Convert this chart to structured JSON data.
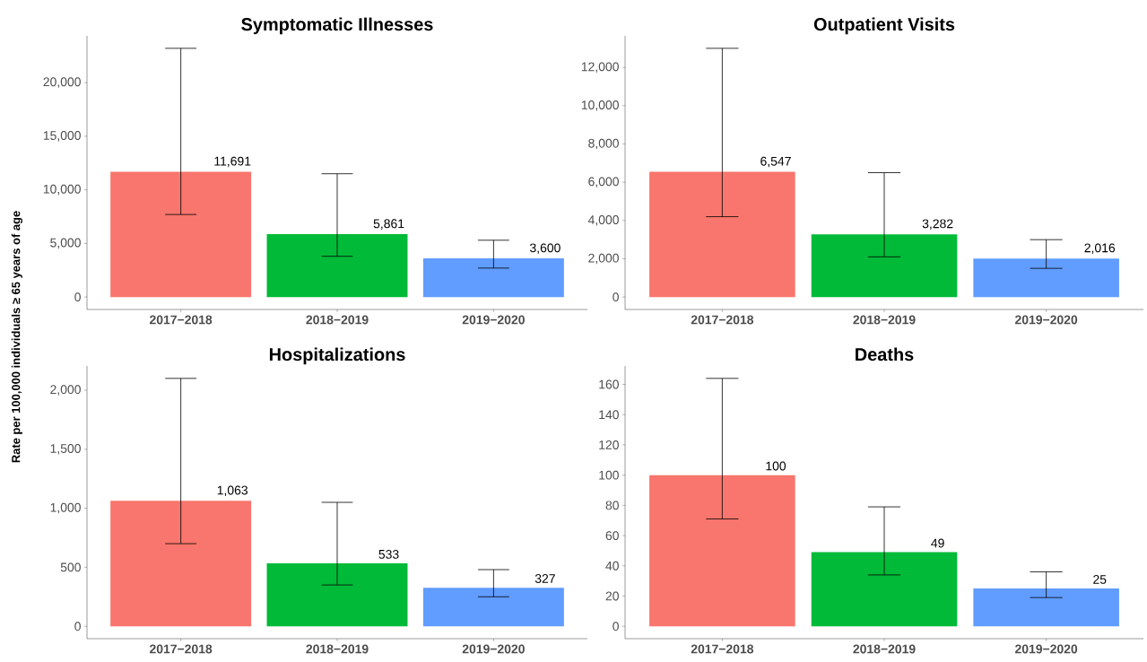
{
  "chart_data": [
    {
      "type": "bar",
      "title": "Symptomatic Illnesses",
      "ylabel": "Rate per 100,000 individuals ≥ 65 years of age",
      "categories": [
        "2017−2018",
        "2018−2019",
        "2019−2020"
      ],
      "values": [
        11691,
        5861,
        3600
      ],
      "value_labels": [
        "11,691",
        "5,861",
        "3,600"
      ],
      "colors": [
        "#f8766d",
        "#00ba38",
        "#619cff"
      ],
      "errors": [
        [
          7700,
          23200
        ],
        [
          3800,
          11500
        ],
        [
          2700,
          5300
        ]
      ],
      "ylim": [
        -1160,
        24360
      ],
      "yticks": [
        0,
        {
          "value": 5000,
          "label": "5,000"
        },
        {
          "value": 10000,
          "label": "10,000"
        },
        {
          "value": 15000,
          "label": "15,000"
        },
        {
          "value": 20000,
          "label": "20,000"
        }
      ],
      "grid": false
    },
    {
      "type": "bar",
      "title": "Outpatient Visits",
      "categories": [
        "2017−2018",
        "2018−2019",
        "2019−2020"
      ],
      "values": [
        6547,
        3282,
        2016
      ],
      "value_labels": [
        "6,547",
        "3,282",
        "2,016"
      ],
      "colors": [
        "#f8766d",
        "#00ba38",
        "#619cff"
      ],
      "errors": [
        [
          4200,
          13000
        ],
        [
          2100,
          6500
        ],
        [
          1500,
          3000
        ]
      ],
      "ylim": [
        -650,
        13650
      ],
      "yticks": [
        0,
        {
          "value": 2000,
          "label": "2,000"
        },
        {
          "value": 4000,
          "label": "4,000"
        },
        {
          "value": 6000,
          "label": "6,000"
        },
        {
          "value": 8000,
          "label": "8,000"
        },
        {
          "value": 10000,
          "label": "10,000"
        },
        {
          "value": 12000,
          "label": "12,000"
        }
      ],
      "grid": false
    },
    {
      "type": "bar",
      "title": "Hospitalizations",
      "categories": [
        "2017−2018",
        "2018−2019",
        "2019−2020"
      ],
      "values": [
        1063,
        533,
        327
      ],
      "value_labels": [
        "1,063",
        "533",
        "327"
      ],
      "colors": [
        "#f8766d",
        "#00ba38",
        "#619cff"
      ],
      "errors": [
        [
          700,
          2100
        ],
        [
          350,
          1050
        ],
        [
          250,
          480
        ]
      ],
      "ylim": [
        -105,
        2205
      ],
      "yticks": [
        0,
        500,
        {
          "value": 1000,
          "label": "1,000"
        },
        {
          "value": 1500,
          "label": "1,500"
        },
        {
          "value": 2000,
          "label": "2,000"
        }
      ],
      "grid": false
    },
    {
      "type": "bar",
      "title": "Deaths",
      "categories": [
        "2017−2018",
        "2018−2019",
        "2019−2020"
      ],
      "values": [
        100,
        49,
        25
      ],
      "data_labels": true,
      "colors": [
        "#f8766d",
        "#00ba38",
        "#619cff"
      ],
      "errors": [
        [
          71,
          164
        ],
        [
          34,
          79
        ],
        [
          19,
          36
        ]
      ],
      "ylim": [
        -8.2,
        172.2
      ],
      "yticks": [
        0,
        20,
        40,
        60,
        80,
        100,
        120,
        140,
        160
      ],
      "grid": false
    }
  ]
}
